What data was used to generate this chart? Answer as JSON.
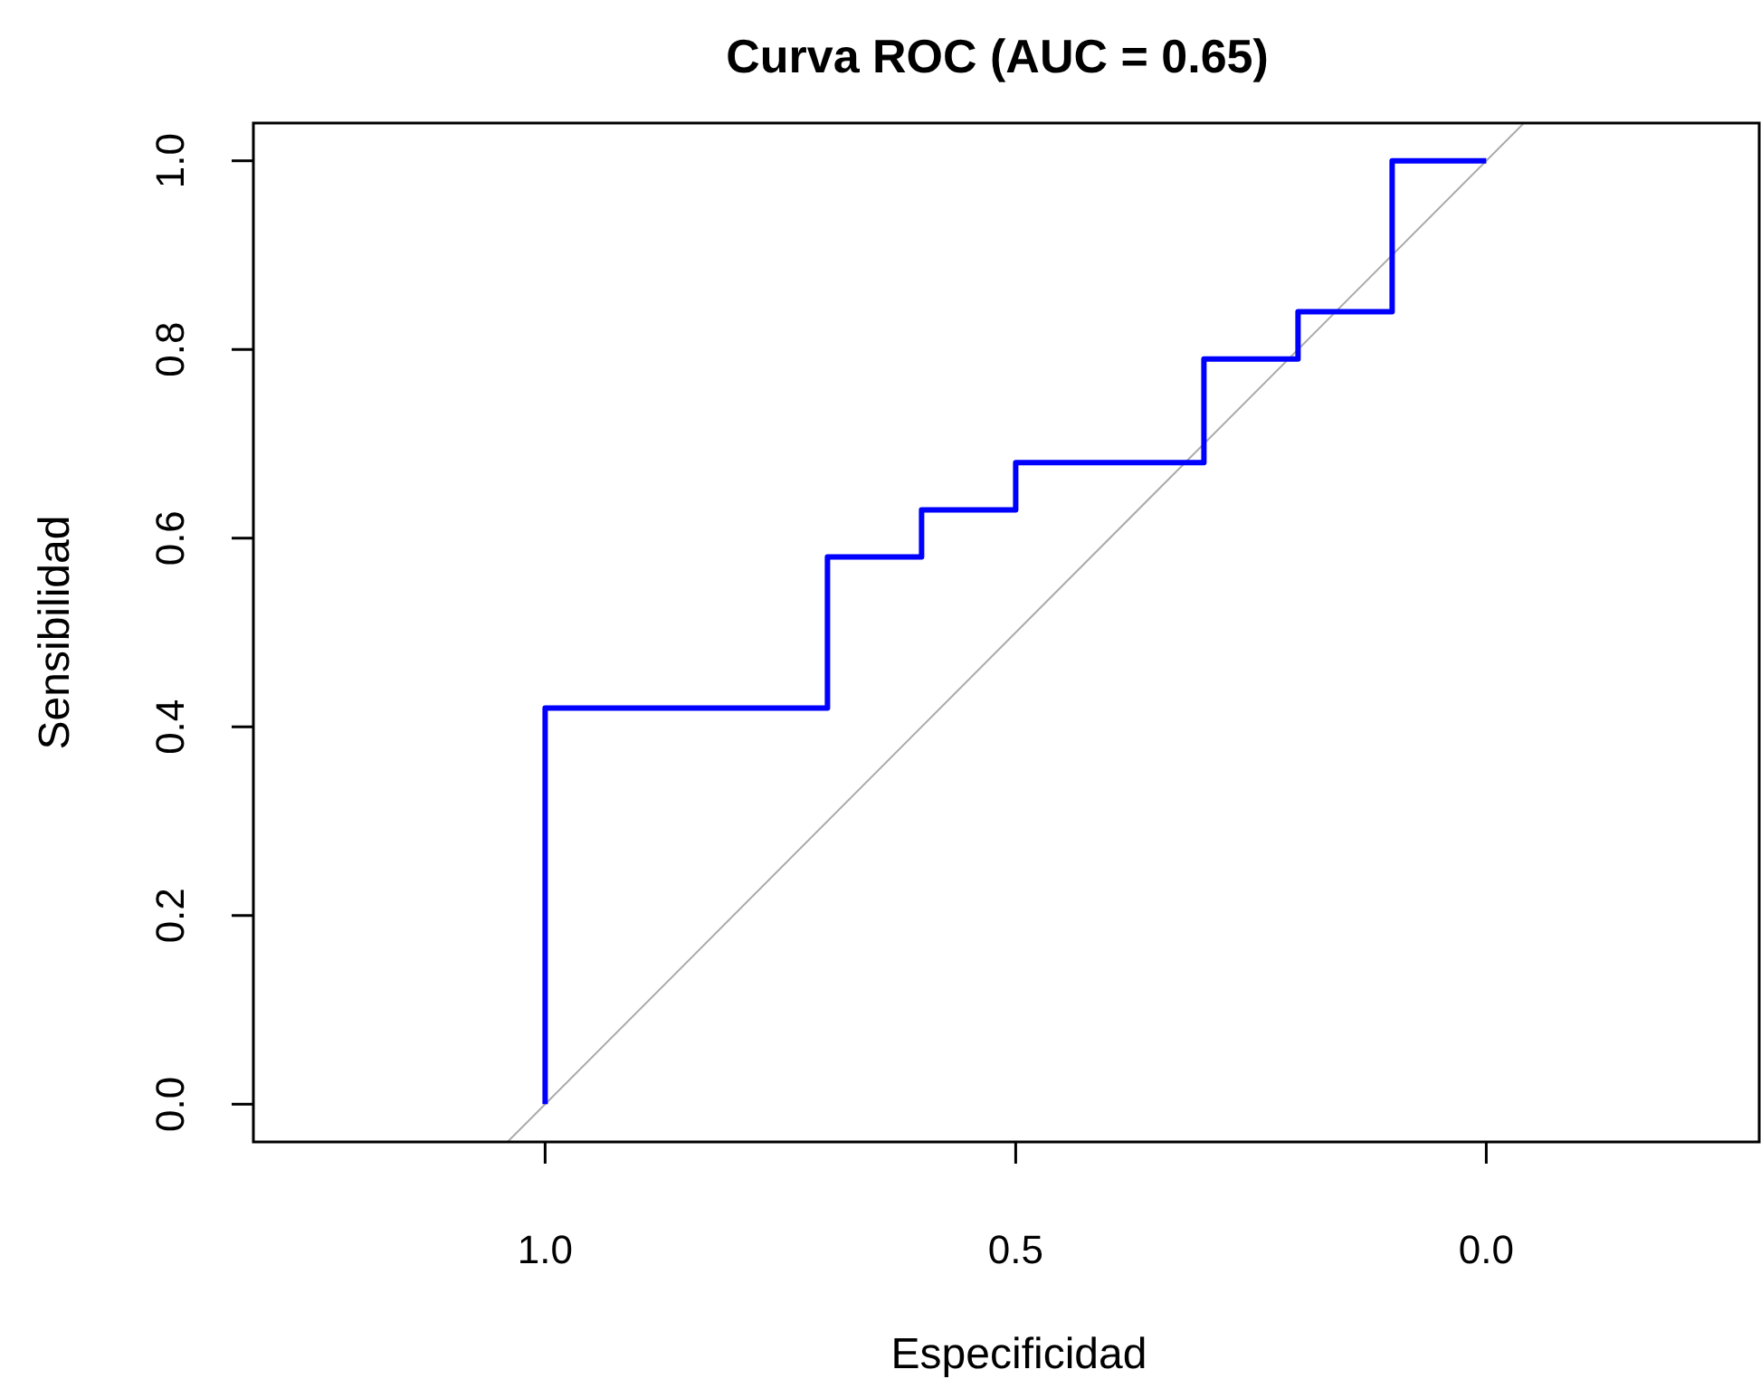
{
  "chart_data": {
    "type": "line",
    "title": "Curva ROC (AUC = 0.65)",
    "xlabel": "Especificidad",
    "ylabel": "Sensibilidad",
    "xlim": [
      1.31,
      -0.29
    ],
    "ylim": [
      -0.04,
      1.04
    ],
    "xticks": [
      {
        "value": 1,
        "label": "1.0"
      },
      {
        "value": 0.5,
        "label": "0.5"
      },
      {
        "value": 0,
        "label": "0.0"
      }
    ],
    "yticks": [
      {
        "value": 0,
        "label": "0.0"
      },
      {
        "value": 0.2,
        "label": "0.2"
      },
      {
        "value": 0.4,
        "label": "0.4"
      },
      {
        "value": 0.6,
        "label": "0.6"
      },
      {
        "value": 0.8,
        "label": "0.8"
      },
      {
        "value": 1,
        "label": "1.0"
      }
    ],
    "grid": false,
    "marker": "none",
    "line_style": "solid",
    "series": [
      {
        "color": "#aaaaaa",
        "x": [
          1.04,
          -0.04
        ],
        "values": [
          -0.04,
          1.04
        ]
      },
      {
        "color": "#0000ff",
        "x": [
          1,
          1,
          0.7,
          0.7,
          0.6,
          0.6,
          0.5,
          0.5,
          0.3,
          0.3,
          0.2,
          0.2,
          0.1,
          0.1,
          0
        ],
        "values": [
          0,
          0.42,
          0.42,
          0.58,
          0.58,
          0.63,
          0.63,
          0.68,
          0.68,
          0.79,
          0.79,
          0.84,
          0.84,
          1,
          1
        ]
      }
    ]
  }
}
